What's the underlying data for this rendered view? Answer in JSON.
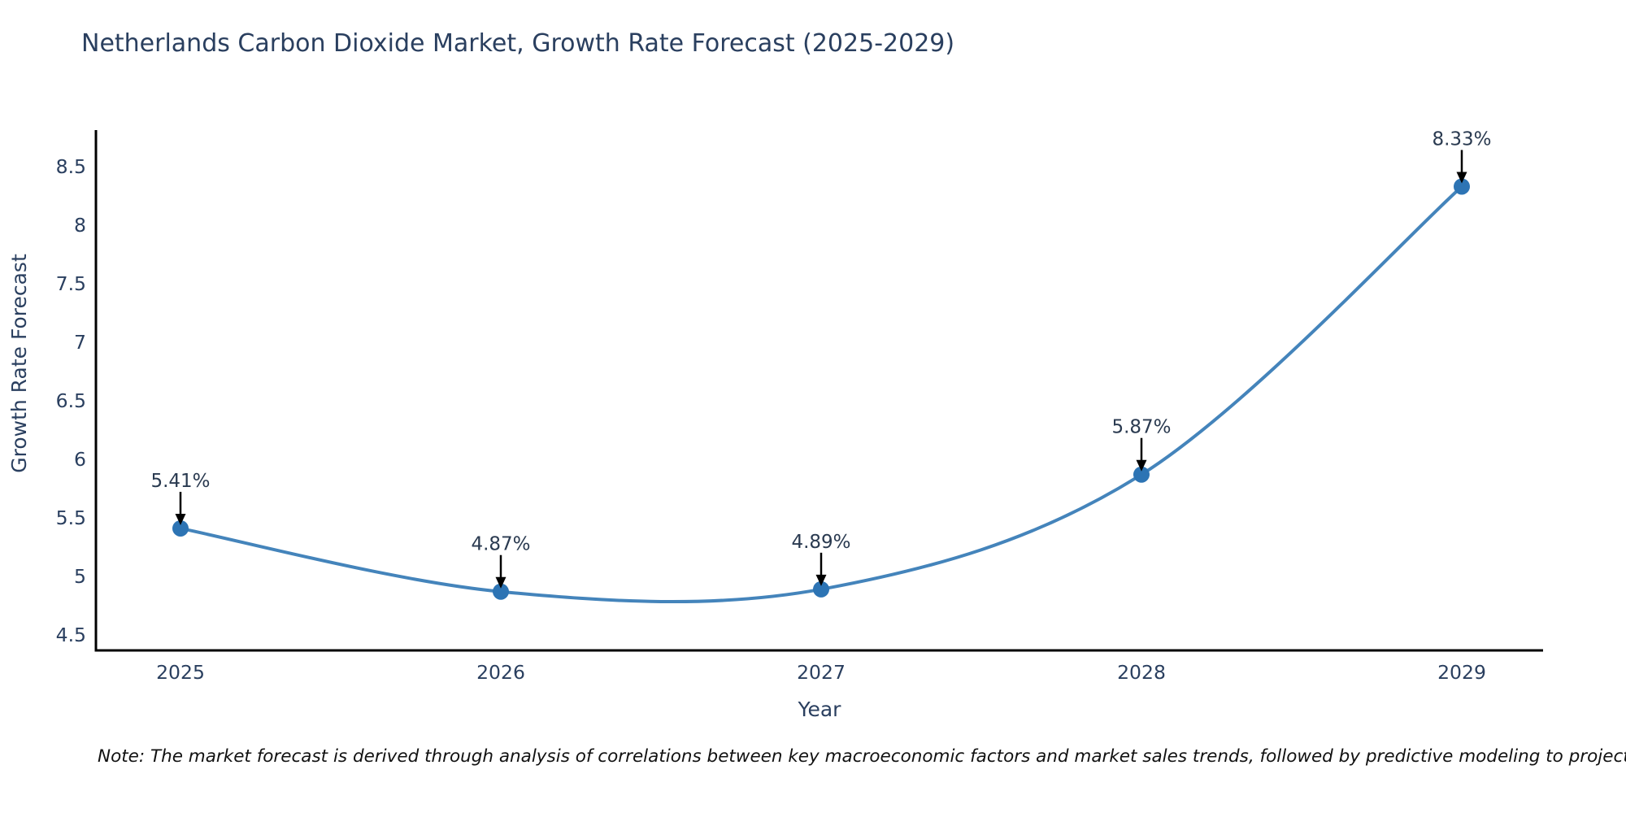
{
  "title": "Netherlands Carbon Dioxide Market, Growth Rate Forecast (2025-2029)",
  "note": "Note: The market forecast is derived through analysis of correlations between key macroeconomic factors and market sales trends, followed by predictive modeling to project future sales",
  "chart_data": {
    "type": "line",
    "title": "Netherlands Carbon Dioxide Market, Growth Rate Forecast (2025-2029)",
    "xlabel": "Year",
    "ylabel": "Growth Rate Forecast",
    "categories": [
      "2025",
      "2026",
      "2027",
      "2028",
      "2029"
    ],
    "series": [
      {
        "name": "Growth Rate Forecast",
        "values": [
          5.41,
          4.87,
          4.89,
          5.87,
          8.33
        ]
      }
    ],
    "point_labels": [
      "5.41%",
      "4.87%",
      "4.89%",
      "5.87%",
      "8.33%"
    ],
    "ytick_labels": [
      "4.5",
      "5",
      "5.5",
      "6",
      "6.5",
      "7",
      "7.5",
      "8",
      "8.5"
    ],
    "ytick_values": [
      4.5,
      5,
      5.5,
      6,
      6.5,
      7,
      7.5,
      8,
      8.5
    ],
    "ylim": [
      4.37,
      8.81
    ],
    "grid": false,
    "legend": false,
    "line_shape": "spline",
    "colors": {
      "line": "#4484bb",
      "marker": "#2d74b4",
      "axis": "#000000",
      "text": "#2a3f5f",
      "annotation_text": "#2a3a50",
      "annotation_arrow": "#000000",
      "note_text": "#111111"
    }
  }
}
